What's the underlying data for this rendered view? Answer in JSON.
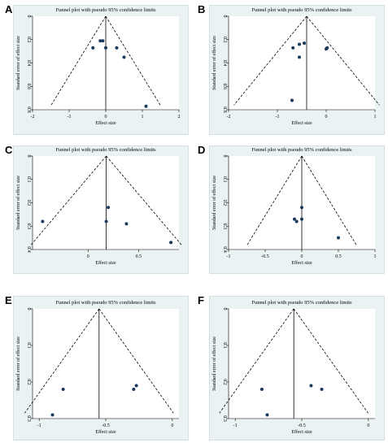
{
  "chart_data": [
    {
      "panel": "A",
      "type": "scatter",
      "title": "Funnel plot with pseudo 95% confidence limits",
      "xlabel": "Effect size",
      "ylabel": "Standard error of effect size",
      "xlim": [
        -2,
        2
      ],
      "ylim": [
        0,
        0.8
      ],
      "y_reversed": true,
      "xticks": [
        "-2",
        "-1",
        "0",
        "1",
        "2"
      ],
      "yticks": [
        "0",
        "0.2",
        "0.4",
        "0.6",
        "0.8"
      ],
      "xtick_values": [
        -2,
        -1,
        0,
        1,
        2
      ],
      "ytick_values": [
        0,
        0.2,
        0.4,
        0.6,
        0.8
      ],
      "pooled": 0,
      "points": [
        [
          -0.35,
          0.27
        ],
        [
          -0.15,
          0.21
        ],
        [
          -0.08,
          0.21
        ],
        [
          0.0,
          0.27
        ],
        [
          0.3,
          0.27
        ],
        [
          0.5,
          0.35
        ],
        [
          1.1,
          0.77
        ]
      ]
    },
    {
      "panel": "B",
      "type": "scatter",
      "title": "Funnel plot with pseudo 95% confidence limits",
      "xlabel": "Effect size",
      "ylabel": "Standard error of effect size",
      "xlim": [
        -2,
        1
      ],
      "ylim": [
        0,
        0.8
      ],
      "y_reversed": true,
      "xticks": [
        "-2",
        "-1",
        "0",
        "1"
      ],
      "yticks": [
        "0",
        "0.2",
        "0.4",
        "0.6",
        "0.8"
      ],
      "xtick_values": [
        -2,
        -1,
        0,
        1
      ],
      "ytick_values": [
        0,
        0.2,
        0.4,
        0.6,
        0.8
      ],
      "pooled": -0.4,
      "points": [
        [
          -0.68,
          0.27
        ],
        [
          -0.55,
          0.24
        ],
        [
          -0.45,
          0.23
        ],
        [
          -0.55,
          0.35
        ],
        [
          0.0,
          0.28
        ],
        [
          0.02,
          0.27
        ],
        [
          -0.7,
          0.72
        ]
      ]
    },
    {
      "panel": "C",
      "type": "scatter",
      "title": "Funnel plot with pseudo 95% confidence limits",
      "xlabel": "Effect size",
      "ylabel": "Standard error of effect size",
      "xlim": [
        -0.55,
        0.9
      ],
      "ylim": [
        0,
        0.4
      ],
      "y_reversed": true,
      "xticks": [
        "0",
        "0.5"
      ],
      "yticks": [
        "0",
        "0.1",
        "0.2",
        "0.3",
        "0.4"
      ],
      "xtick_values": [
        0,
        0.5
      ],
      "ytick_values": [
        0,
        0.1,
        0.2,
        0.3,
        0.4
      ],
      "pooled": 0.18,
      "points": [
        [
          -0.45,
          0.28
        ],
        [
          0.2,
          0.22
        ],
        [
          0.18,
          0.28
        ],
        [
          0.38,
          0.29
        ],
        [
          0.82,
          0.37
        ]
      ]
    },
    {
      "panel": "D",
      "type": "scatter",
      "title": "Funnel plot with pseudo 95% confidence limits",
      "xlabel": "Effect size",
      "ylabel": "Standard error of effect size",
      "xlim": [
        -1,
        1
      ],
      "ylim": [
        0,
        0.4
      ],
      "y_reversed": true,
      "xticks": [
        "-1",
        "-0.5",
        "0",
        "0.5",
        "1"
      ],
      "yticks": [
        "0",
        "0.1",
        "0.2",
        "0.3",
        "0.4"
      ],
      "xtick_values": [
        -1,
        -0.5,
        0,
        0.5,
        1
      ],
      "ytick_values": [
        0,
        0.1,
        0.2,
        0.3,
        0.4
      ],
      "pooled": 0,
      "points": [
        [
          -0.1,
          0.27
        ],
        [
          -0.07,
          0.28
        ],
        [
          0.0,
          0.22
        ],
        [
          0.0,
          0.27
        ],
        [
          0.5,
          0.35
        ]
      ]
    },
    {
      "panel": "E",
      "type": "scatter",
      "title": "Funnel plot with pseudo 95% confidence limits",
      "xlabel": "Effect size",
      "ylabel": "Standard error of effect size",
      "xlim": [
        -1.05,
        0.05
      ],
      "ylim": [
        0,
        0.3
      ],
      "y_reversed": true,
      "xticks": [
        "-1",
        "-0.5",
        "0"
      ],
      "yticks": [
        "0",
        "0.1",
        "0.2",
        "0.3"
      ],
      "xtick_values": [
        -1,
        -0.5,
        0
      ],
      "ytick_values": [
        0,
        0.1,
        0.2,
        0.3
      ],
      "pooled": -0.55,
      "points": [
        [
          -0.9,
          0.29
        ],
        [
          -0.82,
          0.22
        ],
        [
          -0.27,
          0.21
        ],
        [
          -0.29,
          0.22
        ]
      ]
    },
    {
      "panel": "F",
      "type": "scatter",
      "title": "Funnel plot with pseudo 95% confidence limits",
      "xlabel": "Effect size",
      "ylabel": "Standard error of effect size",
      "xlim": [
        -1.05,
        0.05
      ],
      "ylim": [
        0,
        0.3
      ],
      "y_reversed": true,
      "xticks": [
        "-1",
        "-0.5",
        "0"
      ],
      "yticks": [
        "0",
        "0.1",
        "0.2",
        "0.3"
      ],
      "xtick_values": [
        -1,
        -0.5,
        0
      ],
      "ytick_values": [
        0,
        0.1,
        0.2,
        0.3
      ],
      "pooled": -0.56,
      "points": [
        [
          -0.8,
          0.22
        ],
        [
          -0.76,
          0.29
        ],
        [
          -0.43,
          0.21
        ],
        [
          -0.35,
          0.22
        ]
      ]
    }
  ],
  "colors": {
    "point": "#1a3a5c",
    "background": "#eaf2f3",
    "line": "#000000"
  }
}
